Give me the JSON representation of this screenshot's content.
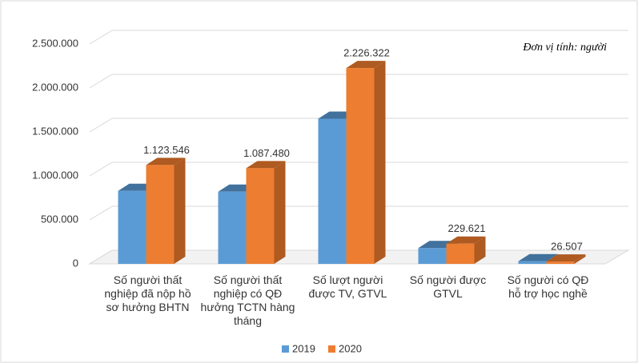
{
  "chart_data": {
    "type": "bar3d",
    "annotation": "Đơn vị tính: người",
    "categories": [
      "Số người thất nghiệp đã nộp hồ sơ hưởng BHTN",
      "Số người thất nghiệp có QĐ hưởng TCTN hàng tháng",
      "Số lượt người được TV, GTVL",
      "Số người được GTVL",
      "Số người có QĐ hỗ trợ học nghề"
    ],
    "series": [
      {
        "name": "2019",
        "color": "#5b9bd5",
        "side": "#41719c",
        "values": [
          830000,
          820000,
          1650000,
          180000,
          30000
        ]
      },
      {
        "name": "2020",
        "color": "#ed7d31",
        "side": "#ae5a21",
        "values": [
          1123546,
          1087480,
          2226322,
          229621,
          26507
        ],
        "value_labels": [
          "1.123.546",
          "1.087.480",
          "2.226.322",
          "229.621",
          "26.507"
        ]
      }
    ],
    "ylim": [
      0,
      2500000
    ],
    "yticks": [
      0,
      {
        "value": 500000,
        "label": "500.000"
      },
      {
        "value": 1000000,
        "label": "1.000.000"
      },
      {
        "value": 1500000,
        "label": "1.500.000"
      },
      {
        "value": 2000000,
        "label": "2.000.000"
      },
      {
        "value": 2500000,
        "label": "2.500.000"
      }
    ],
    "grid": true,
    "legend": "bottom"
  }
}
